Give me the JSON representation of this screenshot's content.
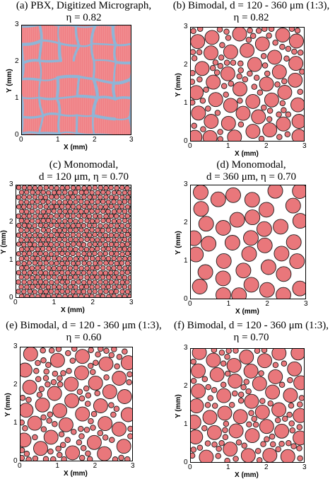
{
  "figure": {
    "panels": [
      {
        "id": "a",
        "title_line1": "(a) PBX, Digitized Micrograph,",
        "title_line2": "η = 0.82",
        "kind": "micrograph",
        "xlabel": "X (mm)",
        "ylabel": "Y (mm)",
        "xticks": [
          "0",
          "1",
          "2",
          "3"
        ],
        "yticks": [
          "0",
          "1",
          "2",
          "3"
        ]
      },
      {
        "id": "b",
        "title_line1": "(b) Bimodal, d = 120 - 360 μm (1:3),",
        "title_line2": "η = 0.82",
        "kind": "bimodal",
        "xlabel": "X (mm)",
        "ylabel": "Y (mm)",
        "xticks": [
          "0",
          "1",
          "2",
          "3"
        ],
        "yticks": [
          "0",
          "1",
          "2",
          "3"
        ]
      },
      {
        "id": "c",
        "title_line1": "(c) Monomodal,",
        "title_line2": "d = 120 μm, η = 0.70",
        "kind": "mono-small",
        "xlabel": "X (mm)",
        "ylabel": "Y (mm)",
        "xticks": [
          "0",
          "1",
          "2",
          "3"
        ],
        "yticks": [
          "0",
          "1",
          "2",
          "3"
        ]
      },
      {
        "id": "d",
        "title_line1": "(d) Monomodal,",
        "title_line2": "d = 360 μm, η = 0.70",
        "kind": "mono-large",
        "xlabel": "X (mm)",
        "ylabel": "Y (mm)",
        "xticks": [
          "0",
          "1",
          "2",
          "3"
        ],
        "yticks": [
          "0",
          "1",
          "2",
          "3"
        ]
      },
      {
        "id": "e",
        "title_line1": "(e) Bimodal, d = 120 - 360 μm (1:3),",
        "title_line2": "η = 0.60",
        "kind": "bimodal-sparse",
        "xlabel": "X (mm)",
        "ylabel": "Y (mm)",
        "xticks": [
          "0",
          "1",
          "2",
          "3"
        ],
        "yticks": [
          "0",
          "1",
          "2",
          "3"
        ]
      },
      {
        "id": "f",
        "title_line1": "(f) Bimodal, d = 120 - 360 μm (1:3),",
        "title_line2": "η = 0.70",
        "kind": "bimodal-mid",
        "xlabel": "X (mm)",
        "ylabel": "Y (mm)",
        "xticks": [
          "0",
          "1",
          "2",
          "3"
        ],
        "yticks": [
          "0",
          "1",
          "2",
          "3"
        ]
      }
    ],
    "colors": {
      "particle": "#e9777b",
      "particle_edge": "#1a1a1a",
      "micrograph_bg": "#ef7f84",
      "binder": "#8fb5d6"
    }
  }
}
